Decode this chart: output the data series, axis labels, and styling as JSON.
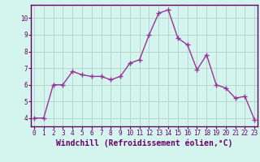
{
  "x": [
    0,
    1,
    2,
    3,
    4,
    5,
    6,
    7,
    8,
    9,
    10,
    11,
    12,
    13,
    14,
    15,
    16,
    17,
    18,
    19,
    20,
    21,
    22,
    23
  ],
  "y": [
    4.0,
    4.0,
    6.0,
    6.0,
    6.8,
    6.6,
    6.5,
    6.5,
    6.3,
    6.5,
    7.3,
    7.5,
    9.0,
    10.3,
    10.5,
    8.8,
    8.4,
    6.9,
    7.8,
    6.0,
    5.8,
    5.2,
    5.3,
    3.9
  ],
  "line_color": "#993399",
  "marker": "+",
  "marker_size": 4,
  "linewidth": 1.0,
  "bg_color": "#d4f5ee",
  "grid_color": "#b0c8c0",
  "xlabel": "Windchill (Refroidissement éolien,°C)",
  "tick_label_color": "#660066",
  "ylabel_ticks": [
    4,
    5,
    6,
    7,
    8,
    9,
    10
  ],
  "xticks": [
    0,
    1,
    2,
    3,
    4,
    5,
    6,
    7,
    8,
    9,
    10,
    11,
    12,
    13,
    14,
    15,
    16,
    17,
    18,
    19,
    20,
    21,
    22,
    23
  ],
  "ylim": [
    3.5,
    10.8
  ],
  "xlim": [
    -0.3,
    23.3
  ],
  "tick_fontsize": 5.5,
  "xlabel_fontsize": 7.0,
  "xlabel_color": "#660066",
  "spine_color": "#660066"
}
